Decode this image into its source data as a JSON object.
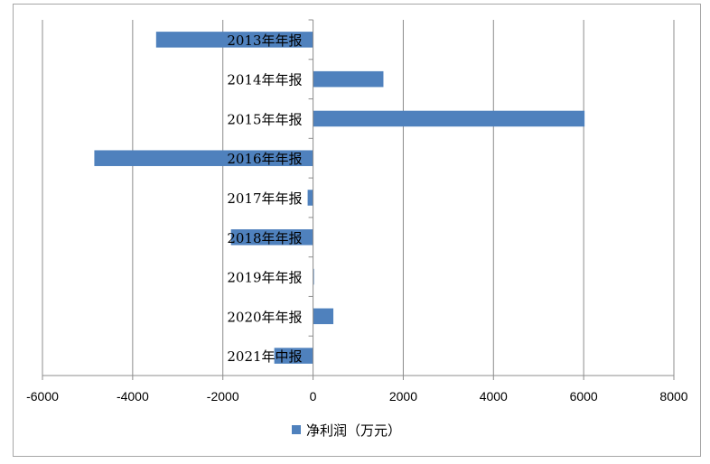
{
  "chart_data": {
    "type": "bar",
    "orientation": "horizontal",
    "categories": [
      "2013年年报",
      "2014年年报",
      "2015年年报",
      "2016年年报",
      "2017年年报",
      "2018年年报",
      "2019年年报",
      "2020年年报",
      "2021年中报"
    ],
    "series": [
      {
        "name": "净利润（万元）",
        "color": "#4f81bd",
        "values": [
          -3480,
          1560,
          6020,
          -4850,
          -120,
          -1820,
          10,
          450,
          -860
        ]
      }
    ],
    "xlim": [
      -6000,
      8000
    ],
    "xticks": [
      -6000,
      -4000,
      -2000,
      0,
      2000,
      4000,
      6000,
      8000
    ],
    "tick_labels": [
      "-6000",
      "-4000",
      "-2000",
      "0",
      "2000",
      "4000",
      "6000",
      "8000"
    ],
    "grid": true,
    "legend": "bottom"
  }
}
